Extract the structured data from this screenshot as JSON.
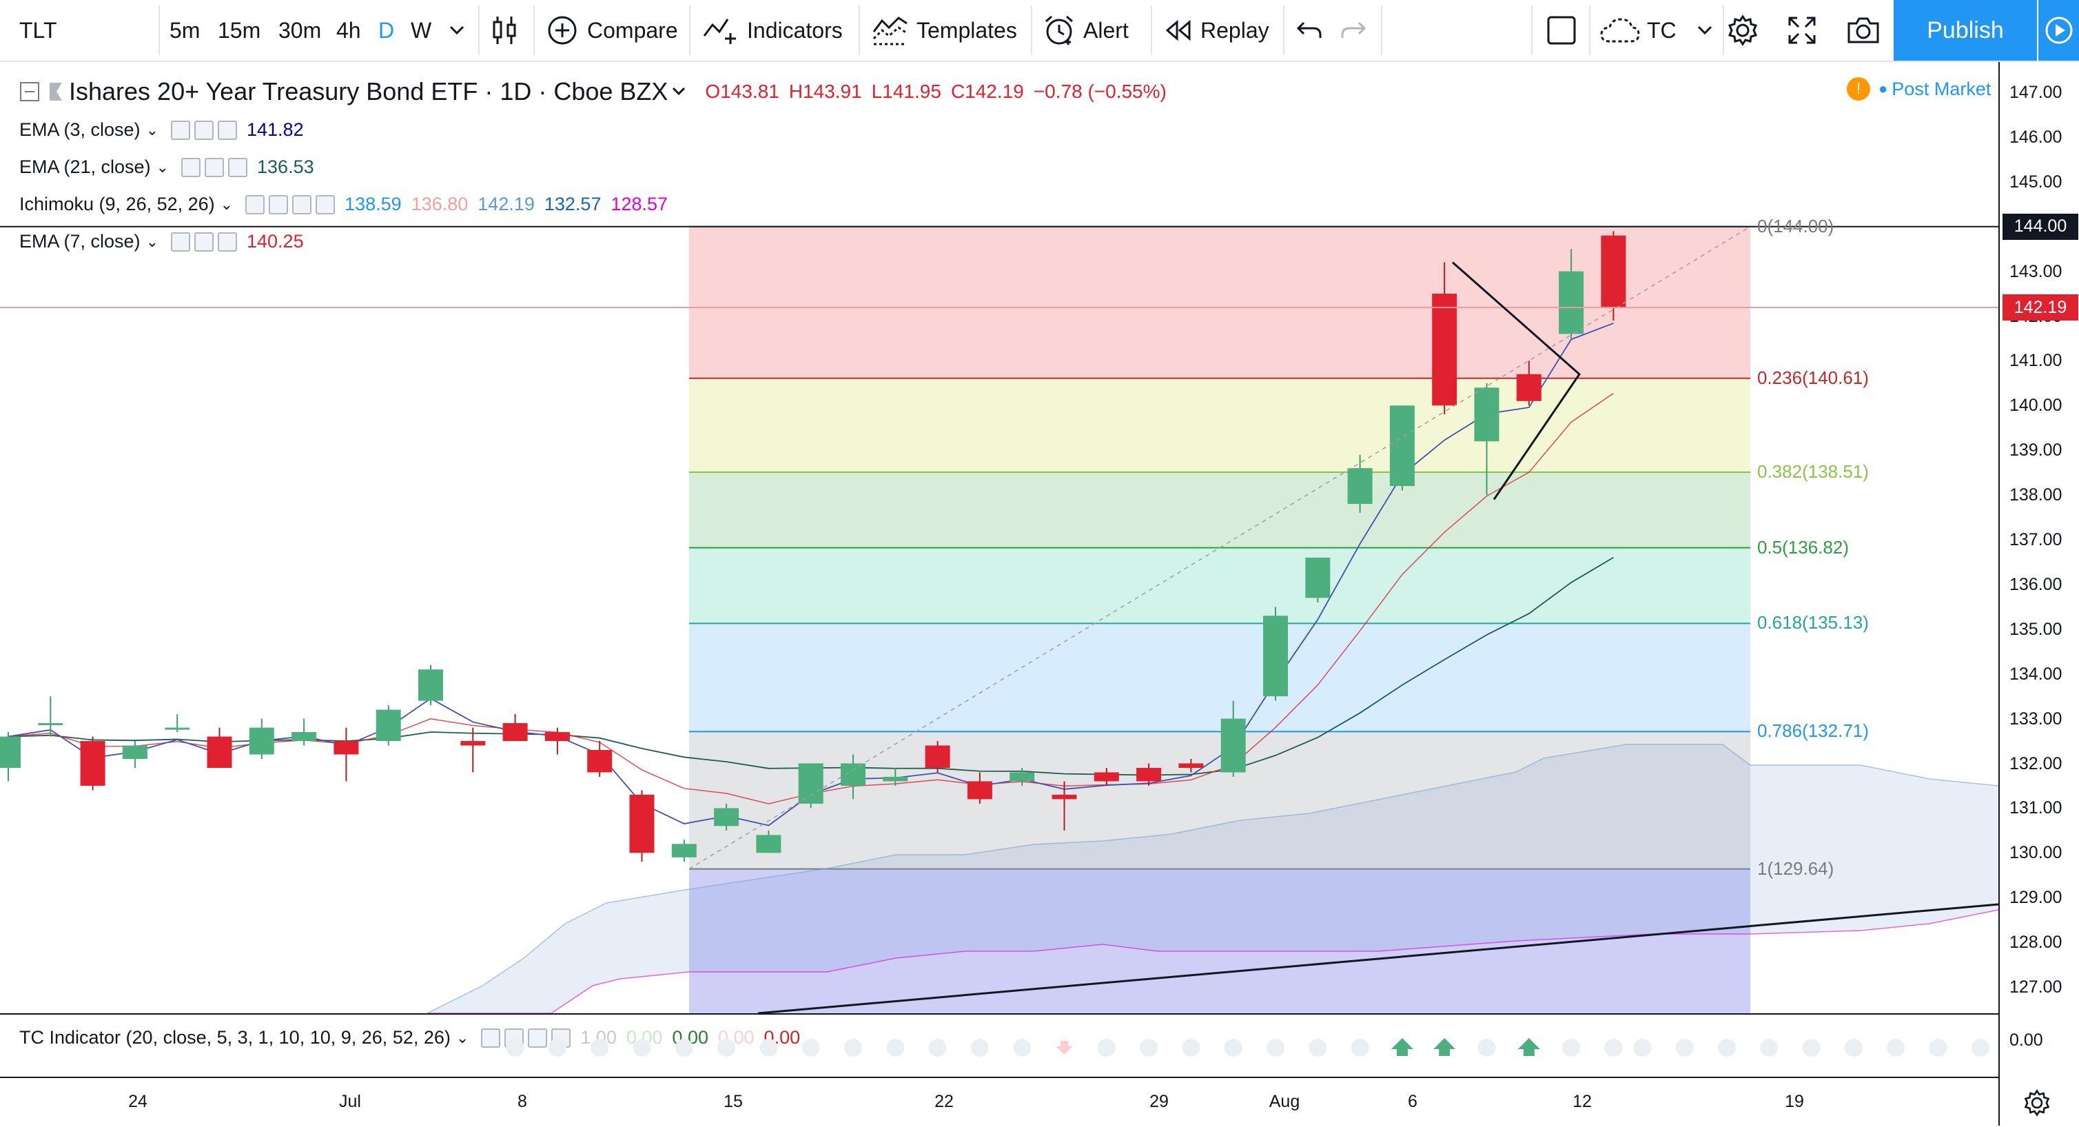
{
  "toolbar": {
    "symbol": "TLT",
    "intervals": [
      "5m",
      "15m",
      "30m",
      "4h",
      "D",
      "W"
    ],
    "active_interval": "D",
    "compare_label": "Compare",
    "indicators_label": "Indicators",
    "templates_label": "Templates",
    "alert_label": "Alert",
    "replay_label": "Replay",
    "layout_name": "TC",
    "publish_label": "Publish"
  },
  "legend": {
    "title": "Ishares 20+ Year Treasury Bond ETF · 1D · Cboe BZX",
    "open": "O143.81",
    "high": "H143.91",
    "low": "L141.95",
    "close": "C142.19",
    "change": "−0.78 (−0.55%)",
    "post_market": "Post Market",
    "post_market_badge": "!",
    "indicators": [
      {
        "label": "EMA (3, close)",
        "values": [
          "141.82"
        ],
        "colors": [
          "#0000aa"
        ]
      },
      {
        "label": "EMA (21, close)",
        "values": [
          "136.53"
        ],
        "colors": [
          "#1b5e50"
        ]
      },
      {
        "label": "Ichimoku (9, 26, 52, 26)",
        "values": [
          "138.59",
          "136.80",
          "142.19",
          "132.57",
          "128.57"
        ],
        "colors": [
          "#2196f3",
          "#f0a0a0",
          "#5a9bd4",
          "#1565c0",
          "#e000e0"
        ]
      },
      {
        "label": "EMA (7, close)",
        "values": [
          "140.25"
        ],
        "colors": [
          "#e0212f"
        ]
      }
    ]
  },
  "price_axis": {
    "labels": [
      "147.00",
      "146.00",
      "145.00",
      "144.00",
      "143.00",
      "142.00",
      "141.00",
      "140.00",
      "139.00",
      "138.00",
      "137.00",
      "136.00",
      "135.00",
      "134.00",
      "133.00",
      "132.00",
      "131.00",
      "130.00",
      "129.00",
      "128.00",
      "127.00"
    ],
    "badge_144": "144.00",
    "badge_last": "142.19",
    "lower_label": "0.00"
  },
  "fib": [
    {
      "label": "0(144.00)",
      "price": 144.0,
      "color": "#787b86"
    },
    {
      "label": "0.236(140.61)",
      "price": 140.61,
      "color": "#c62828"
    },
    {
      "label": "0.382(138.51)",
      "price": 138.51,
      "color": "#8bc34a"
    },
    {
      "label": "0.5(136.82)",
      "price": 136.82,
      "color": "#2e9e3e"
    },
    {
      "label": "0.618(135.13)",
      "price": 135.13,
      "color": "#26a69a"
    },
    {
      "label": "0.786(132.71)",
      "price": 132.71,
      "color": "#2196f3"
    },
    {
      "label": "1(129.64)",
      "price": 129.64,
      "color": "#787b86"
    }
  ],
  "tc_indicator": {
    "label": "TC Indicator (20, close, 5, 3, 1, 10, 10, 9, 26, 52, 26)",
    "values": [
      "1.00",
      "0.00",
      "0.00",
      "0.00",
      "0.00"
    ]
  },
  "time_axis": {
    "labels": [
      "24",
      "Jul",
      "8",
      "15",
      "22",
      "29",
      "Aug",
      "6",
      "12",
      "19"
    ]
  },
  "chart_data": {
    "type": "candlestick",
    "ylim": [
      126.5,
      147.8
    ],
    "candles": [
      {
        "o": 131.9,
        "h": 132.7,
        "l": 131.6,
        "c": 132.6
      },
      {
        "o": 132.9,
        "h": 133.5,
        "l": 132.6,
        "c": 132.9
      },
      {
        "o": 132.5,
        "h": 132.6,
        "l": 131.4,
        "c": 131.5
      },
      {
        "o": 132.1,
        "h": 132.5,
        "l": 131.9,
        "c": 132.4
      },
      {
        "o": 132.8,
        "h": 133.1,
        "l": 132.7,
        "c": 132.8
      },
      {
        "o": 132.6,
        "h": 132.8,
        "l": 131.9,
        "c": 131.9
      },
      {
        "o": 132.2,
        "h": 133.0,
        "l": 132.1,
        "c": 132.8
      },
      {
        "o": 132.5,
        "h": 133.0,
        "l": 132.4,
        "c": 132.7
      },
      {
        "o": 132.5,
        "h": 132.8,
        "l": 131.6,
        "c": 132.2
      },
      {
        "o": 132.5,
        "h": 133.3,
        "l": 132.4,
        "c": 133.2
      },
      {
        "o": 133.4,
        "h": 134.2,
        "l": 133.3,
        "c": 134.1
      },
      {
        "o": 132.5,
        "h": 132.8,
        "l": 131.8,
        "c": 132.4
      },
      {
        "o": 132.9,
        "h": 133.1,
        "l": 132.5,
        "c": 132.5
      },
      {
        "o": 132.7,
        "h": 132.8,
        "l": 132.2,
        "c": 132.5
      },
      {
        "o": 132.3,
        "h": 132.5,
        "l": 131.7,
        "c": 131.8
      },
      {
        "o": 131.3,
        "h": 131.4,
        "l": 129.8,
        "c": 130.0
      },
      {
        "o": 129.9,
        "h": 130.3,
        "l": 129.8,
        "c": 130.2
      },
      {
        "o": 130.6,
        "h": 131.1,
        "l": 130.5,
        "c": 131.0
      },
      {
        "o": 130.0,
        "h": 130.5,
        "l": 130.0,
        "c": 130.4
      },
      {
        "o": 131.1,
        "h": 132.0,
        "l": 131.0,
        "c": 132.0
      },
      {
        "o": 131.5,
        "h": 132.2,
        "l": 131.2,
        "c": 132.0
      },
      {
        "o": 131.6,
        "h": 131.9,
        "l": 131.5,
        "c": 131.7
      },
      {
        "o": 132.4,
        "h": 132.5,
        "l": 131.8,
        "c": 131.9
      },
      {
        "o": 131.6,
        "h": 131.8,
        "l": 131.1,
        "c": 131.2
      },
      {
        "o": 131.6,
        "h": 131.9,
        "l": 131.5,
        "c": 131.8
      },
      {
        "o": 131.3,
        "h": 131.6,
        "l": 130.5,
        "c": 131.2
      },
      {
        "o": 131.8,
        "h": 131.9,
        "l": 131.5,
        "c": 131.6
      },
      {
        "o": 131.9,
        "h": 132.0,
        "l": 131.5,
        "c": 131.6
      },
      {
        "o": 132.0,
        "h": 132.1,
        "l": 131.8,
        "c": 131.9
      },
      {
        "o": 131.8,
        "h": 133.4,
        "l": 131.7,
        "c": 133.0
      },
      {
        "o": 133.5,
        "h": 135.5,
        "l": 133.4,
        "c": 135.3
      },
      {
        "o": 135.7,
        "h": 136.5,
        "l": 135.6,
        "c": 136.6
      },
      {
        "o": 137.8,
        "h": 138.9,
        "l": 137.6,
        "c": 138.6
      },
      {
        "o": 138.2,
        "h": 140.0,
        "l": 138.1,
        "c": 140.0
      },
      {
        "o": 142.5,
        "h": 143.2,
        "l": 139.8,
        "c": 140.0
      },
      {
        "o": 139.2,
        "h": 140.5,
        "l": 138.0,
        "c": 140.4
      },
      {
        "o": 140.7,
        "h": 141.0,
        "l": 140.0,
        "c": 140.1
      },
      {
        "o": 141.6,
        "h": 143.5,
        "l": 141.5,
        "c": 143.0
      },
      {
        "o": 143.8,
        "h": 143.9,
        "l": 141.9,
        "c": 142.2
      }
    ],
    "candle_x_first": 4,
    "candle_step": 31.2,
    "triangle_points": [
      [
        143.2,
        34.5
      ],
      [
        140.7,
        37.5
      ],
      [
        137.9,
        35.5
      ]
    ],
    "trendline": [
      [
        126.4,
        18
      ],
      [
        129.0,
        47.5
      ]
    ]
  }
}
